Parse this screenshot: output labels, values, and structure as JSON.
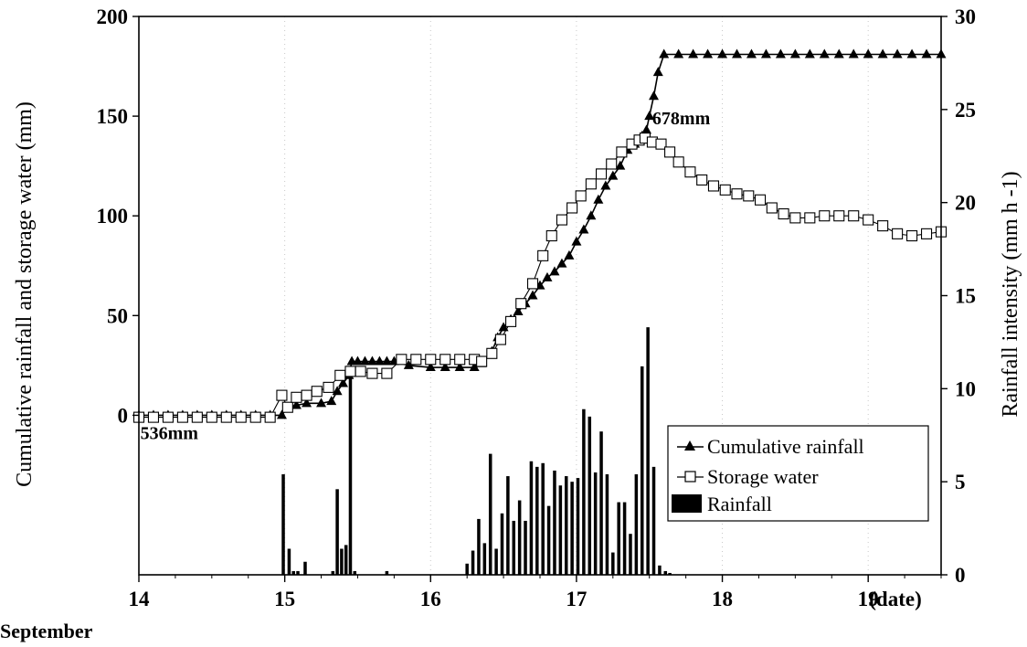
{
  "chart_data": {
    "type": "bar+line",
    "xlabel_unit": "(date)",
    "x_footer": "September",
    "xlim": [
      14,
      19.5
    ],
    "x_ticks": [
      "14",
      "15",
      "16",
      "17",
      "18",
      "19"
    ],
    "ylabel_left": "Cumulative rainfall and storage water (mm)",
    "ylabel_right": "Rainfall intensity (mm h -1)",
    "ylim_left": [
      -80,
      200
    ],
    "yticks_left": [
      "200",
      "150",
      "100",
      "50",
      "0"
    ],
    "yticks_left_values": [
      200,
      150,
      100,
      50,
      0
    ],
    "ylim_right": [
      0,
      30
    ],
    "yticks_right": [
      "30",
      "25",
      "20",
      "15",
      "10",
      "5",
      "0"
    ],
    "yticks_right_values": [
      30,
      25,
      20,
      15,
      10,
      5,
      0
    ],
    "annotations": [
      {
        "text": "536mm",
        "x": 14.01,
        "y": -12
      },
      {
        "text": "678mm",
        "x": 17.52,
        "y": 146
      }
    ],
    "legend": {
      "position": "lower-right",
      "entries": [
        "Cumulative rainfall",
        "Storage water",
        "Rainfall"
      ]
    },
    "series": [
      {
        "name": "Cumulative rainfall",
        "kind": "line-triangle",
        "color": "#000000",
        "x": [
          14.0,
          14.1,
          14.2,
          14.3,
          14.4,
          14.5,
          14.6,
          14.7,
          14.8,
          14.9,
          14.98,
          15.02,
          15.08,
          15.15,
          15.25,
          15.32,
          15.36,
          15.4,
          15.44,
          15.46,
          15.5,
          15.55,
          15.6,
          15.65,
          15.7,
          15.75,
          15.85,
          16.0,
          16.1,
          16.2,
          16.3,
          16.35,
          16.42,
          16.46,
          16.5,
          16.55,
          16.6,
          16.65,
          16.7,
          16.75,
          16.8,
          16.85,
          16.9,
          16.95,
          17.0,
          17.05,
          17.1,
          17.15,
          17.2,
          17.25,
          17.3,
          17.35,
          17.4,
          17.45,
          17.48,
          17.5,
          17.53,
          17.56,
          17.6,
          17.7,
          17.8,
          17.9,
          18.0,
          18.1,
          18.2,
          18.3,
          18.4,
          18.5,
          18.6,
          18.7,
          18.8,
          18.9,
          19.0,
          19.1,
          19.2,
          19.3,
          19.4,
          19.5
        ],
        "values": [
          0,
          0,
          0,
          0,
          0,
          0,
          0,
          0,
          0,
          0,
          0,
          4,
          5,
          6,
          6,
          7,
          12,
          16,
          20,
          27,
          27,
          27,
          27,
          27,
          27,
          27,
          25,
          24,
          24,
          24,
          24,
          26,
          32,
          39,
          44,
          48,
          52,
          56,
          60,
          65,
          69,
          72,
          76,
          80,
          87,
          93,
          100,
          108,
          115,
          120,
          125,
          133,
          136,
          140,
          143,
          150,
          160,
          172,
          181,
          181,
          181,
          181,
          181,
          181,
          181,
          181,
          181,
          181,
          181,
          181,
          181,
          181,
          181,
          181,
          181,
          181,
          181,
          181
        ]
      },
      {
        "name": "Storage water",
        "kind": "line-square-open",
        "color": "#000000",
        "x": [
          14.0,
          14.1,
          14.2,
          14.3,
          14.4,
          14.5,
          14.6,
          14.7,
          14.8,
          14.9,
          14.98,
          15.02,
          15.08,
          15.15,
          15.22,
          15.3,
          15.38,
          15.45,
          15.52,
          15.6,
          15.7,
          15.8,
          15.9,
          16.0,
          16.1,
          16.2,
          16.3,
          16.35,
          16.42,
          16.48,
          16.55,
          16.62,
          16.7,
          16.77,
          16.83,
          16.9,
          16.97,
          17.03,
          17.1,
          17.17,
          17.24,
          17.31,
          17.38,
          17.43,
          17.47,
          17.52,
          17.58,
          17.64,
          17.7,
          17.78,
          17.86,
          17.94,
          18.02,
          18.1,
          18.18,
          18.26,
          18.34,
          18.42,
          18.5,
          18.6,
          18.7,
          18.8,
          18.9,
          19.0,
          19.1,
          19.2,
          19.3,
          19.4,
          19.5
        ],
        "values": [
          -1,
          -1,
          -1,
          -1,
          -1,
          -1,
          -1,
          -1,
          -1,
          -1,
          10,
          4,
          9,
          10,
          12,
          14,
          20,
          22,
          22,
          21,
          21,
          28,
          28,
          28,
          28,
          28,
          28,
          27,
          31,
          38,
          47,
          56,
          66,
          80,
          90,
          98,
          104,
          110,
          116,
          121,
          126,
          132,
          136,
          138,
          139,
          137,
          136,
          132,
          127,
          122,
          118,
          115,
          113,
          111,
          110,
          108,
          104,
          101,
          99,
          99,
          100,
          100,
          100,
          98,
          95,
          91,
          90,
          91,
          92
        ]
      },
      {
        "name": "Rainfall",
        "kind": "bar",
        "color": "#000000",
        "axis": "right",
        "bar_width_days": 0.022,
        "x": [
          14.99,
          15.03,
          15.06,
          15.09,
          15.14,
          15.33,
          15.36,
          15.39,
          15.42,
          15.45,
          15.48,
          15.7,
          16.25,
          16.29,
          16.33,
          16.37,
          16.41,
          16.45,
          16.49,
          16.53,
          16.57,
          16.61,
          16.65,
          16.69,
          16.73,
          16.77,
          16.81,
          16.85,
          16.89,
          16.93,
          16.97,
          17.01,
          17.05,
          17.09,
          17.13,
          17.17,
          17.21,
          17.25,
          17.29,
          17.33,
          17.37,
          17.41,
          17.45,
          17.49,
          17.53,
          17.57,
          17.61,
          17.64
        ],
        "values": [
          5.4,
          1.4,
          0.2,
          0.2,
          0.7,
          0.2,
          4.6,
          1.4,
          1.6,
          10.8,
          0.2,
          0.2,
          0.6,
          1.3,
          3.0,
          1.7,
          6.5,
          1.4,
          3.3,
          5.3,
          2.9,
          4.0,
          2.9,
          6.1,
          5.8,
          6.0,
          3.7,
          5.6,
          4.8,
          5.3,
          5.0,
          5.2,
          8.9,
          8.5,
          5.5,
          7.7,
          5.4,
          1.2,
          3.9,
          3.9,
          2.2,
          5.4,
          11.2,
          13.3,
          5.8,
          0.5,
          0.2,
          0.1
        ]
      }
    ]
  }
}
